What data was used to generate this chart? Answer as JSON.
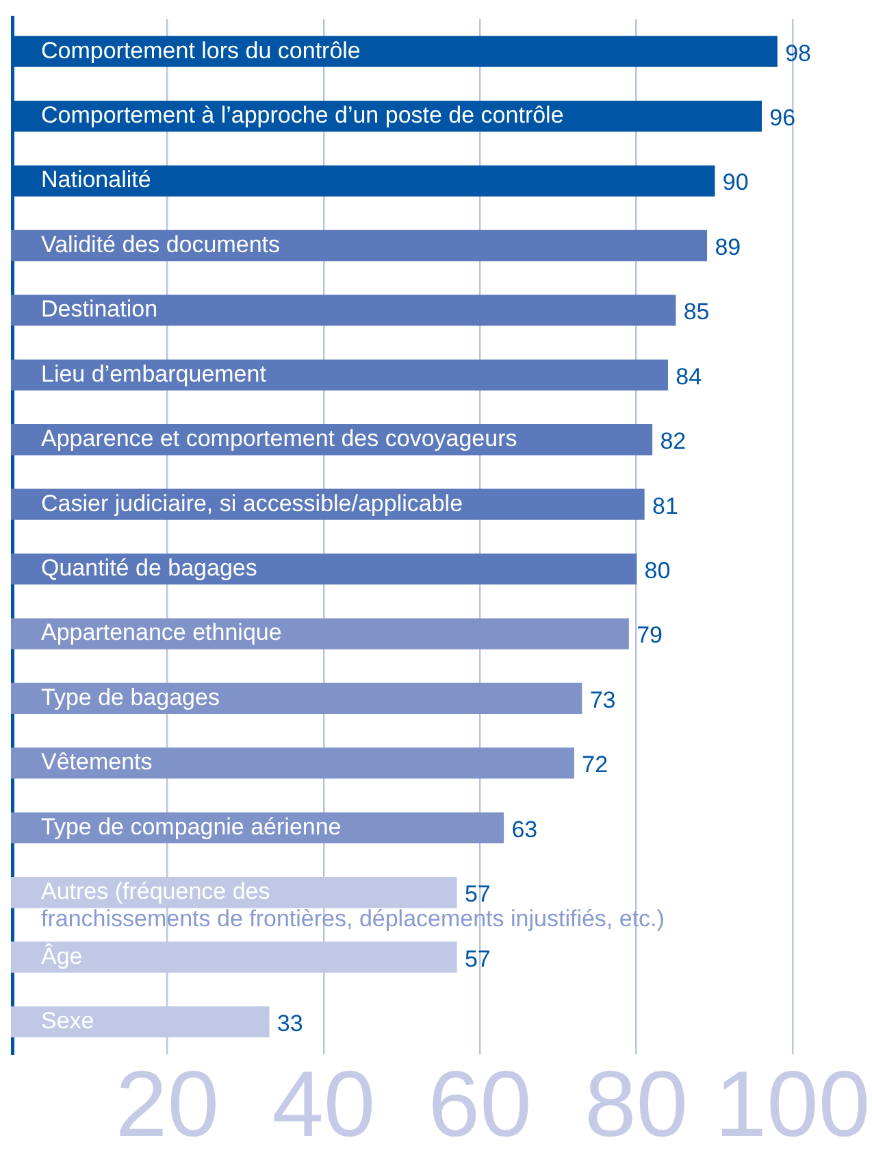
{
  "chart_data": {
    "type": "bar",
    "orientation": "horizontal",
    "categories": [
      "Comportement lors du contrôle",
      "Comportement à l’approche d’un poste de contrôle",
      "Nationalité",
      "Validité des documents",
      "Destination",
      "Lieu d’embarquement",
      "Apparence et comportement des covoyageurs",
      "Casier judiciaire, si accessible/applicable",
      "Quantité de bagages",
      "Appartenance ethnique",
      "Type de bagages",
      "Vêtements",
      "Type de compagnie aérienne",
      "Autres (fréquence des franchissements de frontières, déplacements injustifiés, etc.)",
      "Âge",
      "Sexe"
    ],
    "values": [
      98,
      96,
      90,
      89,
      85,
      84,
      82,
      81,
      80,
      79,
      73,
      72,
      63,
      57,
      57,
      33
    ],
    "colors": [
      "#0055a4",
      "#0055a4",
      "#0055a4",
      "#5b79bb",
      "#5b79bb",
      "#5b79bb",
      "#5b79bb",
      "#5b79bb",
      "#5b79bb",
      "#7f93c8",
      "#7f93c8",
      "#7f93c8",
      "#7f93c8",
      "#c0c8e6",
      "#c0c8e6",
      "#c0c8e6"
    ],
    "xlim": [
      0,
      100
    ],
    "xticks": [
      20,
      40,
      60,
      80,
      100
    ],
    "grid": "x",
    "legend": false,
    "data_labels": true,
    "tick_labels": "x"
  }
}
